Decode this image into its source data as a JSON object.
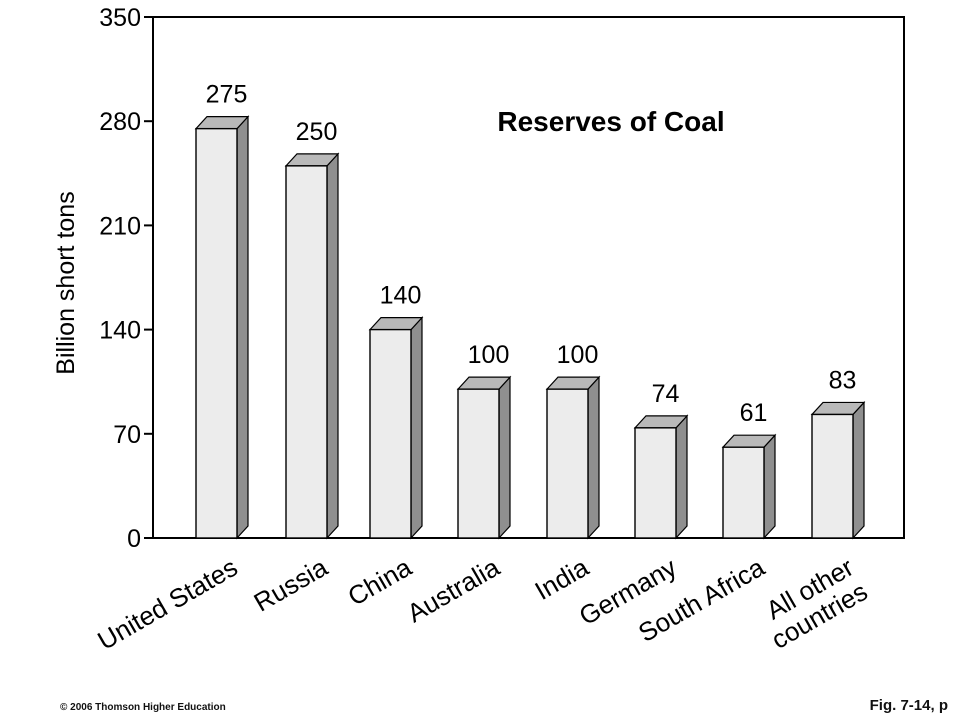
{
  "chart_data": {
    "type": "bar",
    "title": "Reserves of Coal",
    "ylabel": "Billion short tons",
    "xlabel": "",
    "ylim": [
      0,
      350
    ],
    "yticks": [
      0,
      70,
      140,
      210,
      280,
      350
    ],
    "grid": false,
    "categories": [
      [
        "United States"
      ],
      [
        "Russia"
      ],
      [
        "China"
      ],
      [
        "Australia"
      ],
      [
        "India"
      ],
      [
        "Germany"
      ],
      [
        "South Africa"
      ],
      [
        "All other",
        "countries"
      ]
    ],
    "values": [
      275,
      250,
      140,
      100,
      100,
      74,
      61,
      83
    ],
    "value_labels": [
      "275",
      "250",
      "140",
      "100",
      "100",
      "74",
      "61",
      "83"
    ],
    "colors": {
      "front": "#ececec",
      "top": "#b9b9b9",
      "side": "#8f8f8f",
      "outline": "#000000"
    }
  },
  "footer": {
    "copyright": "© 2006 Thomson Higher Education",
    "figure": "Fig. 7-14, p"
  }
}
